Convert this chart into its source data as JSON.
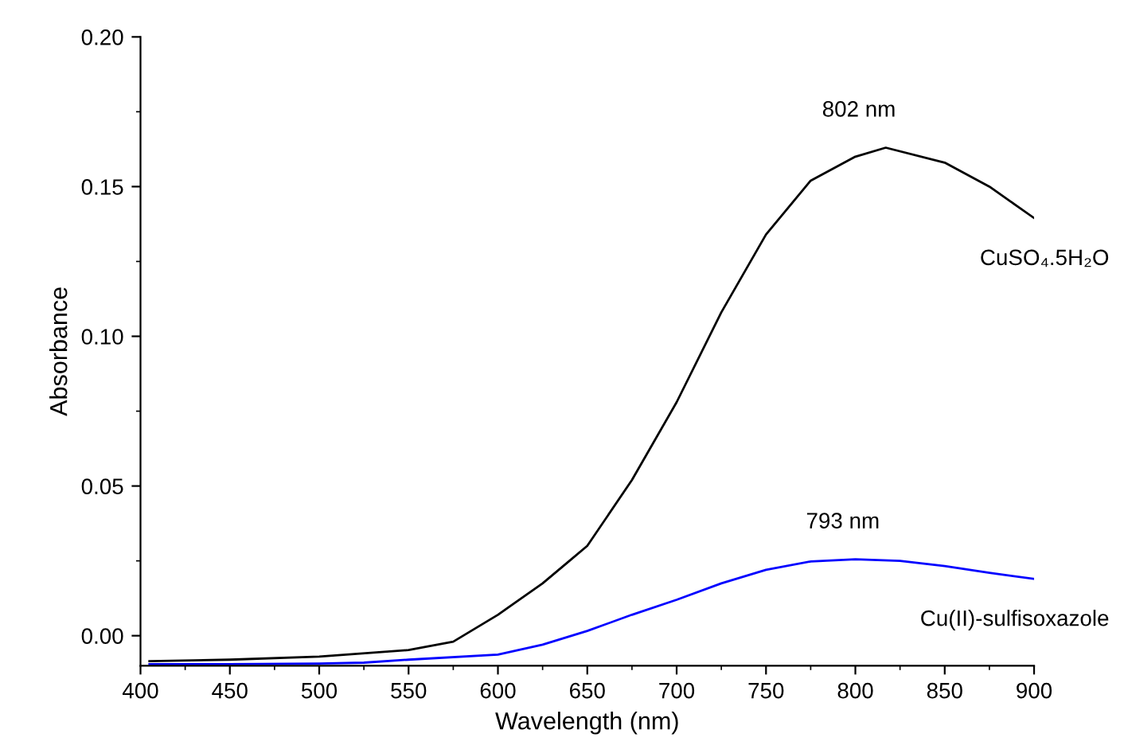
{
  "chart_data": {
    "type": "line",
    "xlabel": "Wavelength (nm)",
    "ylabel": "Absorbance",
    "xlim": [
      400,
      900
    ],
    "xticks": [
      400,
      450,
      500,
      550,
      600,
      650,
      700,
      750,
      800,
      850,
      900
    ],
    "ylim": [
      -0.01,
      0.2
    ],
    "yticks": [
      {
        "value": 0,
        "label": "0.00"
      },
      {
        "value": 0.05,
        "label": "0.05"
      },
      {
        "value": 0.1,
        "label": "0.10"
      },
      {
        "value": 0.15,
        "label": "0.15"
      },
      {
        "value": 0.2,
        "label": "0.20"
      }
    ],
    "grid": false,
    "legend": false,
    "marker": "none",
    "line_style": "solid",
    "series": [
      {
        "name": "CuSO₄.5H₂O",
        "color": "#000000",
        "x": [
          405,
          450,
          500,
          550,
          575,
          600,
          625,
          640,
          650,
          675,
          700,
          725,
          750,
          775,
          800,
          817,
          850,
          875,
          900
        ],
        "values": [
          -0.0085,
          -0.008,
          -0.007,
          -0.0048,
          -0.002,
          0.007,
          0.0175,
          0.025,
          0.03,
          0.052,
          0.078,
          0.108,
          0.134,
          0.152,
          0.16,
          0.163,
          0.158,
          0.15,
          0.1395
        ]
      },
      {
        "name": "Cu(II)-sulfisoxazole",
        "color": "#0000ff",
        "x": [
          405,
          450,
          500,
          525,
          550,
          600,
          625,
          650,
          675,
          700,
          725,
          750,
          775,
          800,
          825,
          850,
          875,
          900
        ],
        "values": [
          -0.0095,
          -0.0095,
          -0.0093,
          -0.009,
          -0.008,
          -0.0063,
          -0.003,
          0.0016,
          0.007,
          0.012,
          0.0175,
          0.022,
          0.0248,
          0.0255,
          0.025,
          0.0233,
          0.021,
          0.019
        ]
      }
    ],
    "annotations": [
      {
        "text": "802 nm",
        "x": 802,
        "y": 0.163
      },
      {
        "text": "793 nm",
        "x": 793,
        "y": 0.0255
      }
    ]
  }
}
